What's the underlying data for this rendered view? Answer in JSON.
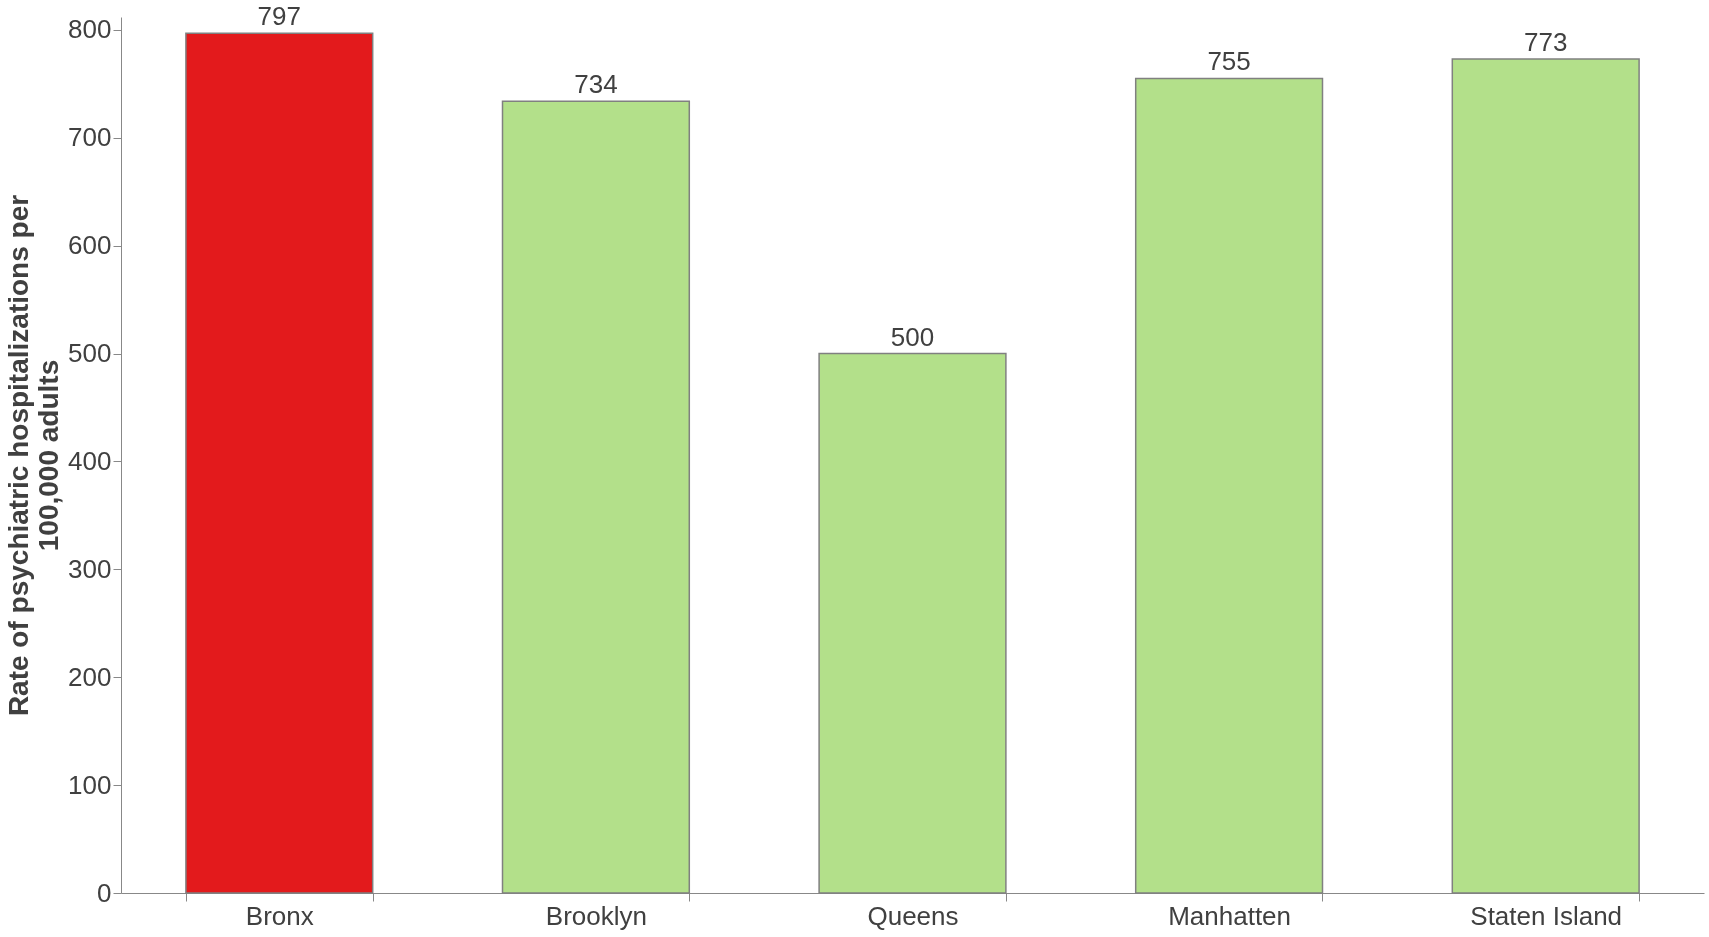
{
  "chart_data": {
    "type": "bar",
    "ylabel": "Rate of psychiatric hospitalizations per 100,000 adults",
    "categories": [
      "Bronx",
      "Brooklyn",
      "Queens",
      "Manhatten",
      "Staten Island"
    ],
    "values": [
      797,
      734,
      500,
      755,
      773
    ],
    "colors": [
      "#e31a1c",
      "#b3e08a",
      "#b3e08a",
      "#b3e08a",
      "#b3e08a"
    ],
    "ylim": [
      0,
      812
    ],
    "yticks": [
      0,
      100,
      200,
      300,
      400,
      500,
      600,
      700,
      800
    ],
    "grid": false,
    "data_labels": true
  }
}
